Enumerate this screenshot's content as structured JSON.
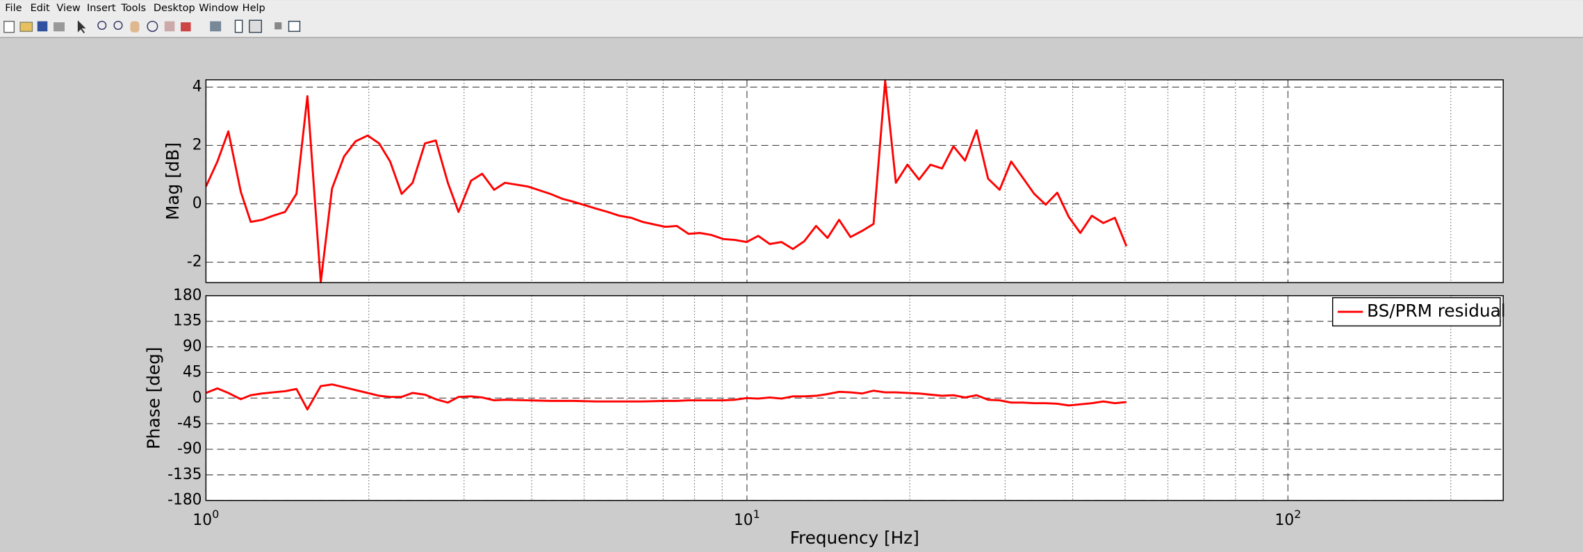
{
  "menu": [
    "File",
    "Edit",
    "View",
    "Insert",
    "Tools",
    "Desktop",
    "Window",
    "Help"
  ],
  "chart_data": [
    {
      "type": "line",
      "ylabel": "Mag [dB]",
      "log_x": true,
      "grid": true,
      "xlim": [
        1,
        250
      ],
      "xticks": [
        1,
        10,
        100
      ],
      "x_minor_ticks": [
        2,
        3,
        4,
        5,
        6,
        7,
        8,
        9,
        20,
        30,
        40,
        50,
        60,
        70,
        80,
        90,
        200
      ],
      "ylim": [
        -2.7,
        4.25
      ],
      "yticks": [
        -2,
        0,
        2,
        4
      ],
      "x": [
        1,
        1.05,
        1.1,
        1.16,
        1.21,
        1.27,
        1.33,
        1.4,
        1.47,
        1.54,
        1.63,
        1.71,
        1.8,
        1.89,
        1.99,
        2.09,
        2.19,
        2.3,
        2.41,
        2.54,
        2.66,
        2.8,
        2.93,
        3.09,
        3.24,
        3.41,
        3.57,
        3.94,
        4.33,
        4.56,
        4.78,
        5.27,
        5.53,
        5.81,
        6.11,
        6.41,
        7.06,
        7.42,
        7.8,
        8.19,
        8.6,
        9.05,
        9.5,
        9.99,
        10.49,
        11.02,
        11.58,
        12.16,
        12.77,
        13.42,
        14.09,
        14.8,
        15.54,
        16.32,
        17.14,
        18.01,
        18.85,
        19.8,
        20.8,
        21.84,
        22.94,
        24.09,
        25.3,
        26.57,
        27.91,
        29.31,
        30.79,
        32.33,
        33.96,
        35.67,
        37.46,
        39.34,
        41.32,
        43.4,
        45.58,
        47.87,
        50.28
      ],
      "series": [
        {
          "color": "#ff0000",
          "values": [
            0.59,
            1.45,
            2.48,
            0.41,
            -0.62,
            -0.55,
            -0.41,
            -0.28,
            0.34,
            3.69,
            -2.69,
            0.52,
            1.62,
            2.14,
            2.34,
            2.07,
            1.45,
            0.34,
            0.72,
            2.07,
            2.17,
            0.72,
            -0.28,
            0.79,
            1.03,
            0.48,
            0.72,
            0.59,
            0.34,
            0.17,
            0.07,
            -0.17,
            -0.28,
            -0.41,
            -0.48,
            -0.62,
            -0.79,
            -0.76,
            -1.03,
            -1.0,
            -1.07,
            -1.21,
            -1.24,
            -1.31,
            -1.1,
            -1.38,
            -1.31,
            -1.55,
            -1.28,
            -0.76,
            -1.17,
            -0.55,
            -1.14,
            -0.93,
            -0.69,
            4.21,
            0.72,
            1.34,
            0.83,
            1.34,
            1.21,
            1.97,
            1.48,
            2.52,
            0.86,
            0.48,
            1.45,
            0.9,
            0.34,
            -0.03,
            0.38,
            -0.45,
            -1.0,
            -0.41,
            -0.66,
            -0.48,
            -1.45
          ]
        }
      ]
    },
    {
      "type": "line",
      "ylabel": "Phase [deg]",
      "xlabel": "Frequency [Hz]",
      "log_x": true,
      "grid": true,
      "legend": "northeast",
      "xlim": [
        1,
        250
      ],
      "xticks": [
        {
          "value": 1,
          "label": "10",
          "exponent": "0"
        },
        {
          "value": 10,
          "label": "10",
          "exponent": "1"
        },
        {
          "value": 100,
          "label": "10",
          "exponent": "2"
        }
      ],
      "x_minor_ticks": [
        2,
        3,
        4,
        5,
        6,
        7,
        8,
        9,
        20,
        30,
        40,
        50,
        60,
        70,
        80,
        90,
        200
      ],
      "ylim": [
        -180,
        180
      ],
      "yticks": [
        -180,
        -135,
        -90,
        -45,
        0,
        45,
        90,
        135,
        180
      ],
      "x": [
        1,
        1.05,
        1.1,
        1.16,
        1.21,
        1.27,
        1.33,
        1.4,
        1.47,
        1.54,
        1.63,
        1.71,
        1.8,
        1.89,
        1.99,
        2.09,
        2.19,
        2.3,
        2.41,
        2.54,
        2.66,
        2.8,
        2.93,
        3.09,
        3.24,
        3.41,
        3.57,
        3.94,
        4.33,
        4.56,
        4.78,
        5.27,
        5.53,
        5.81,
        6.11,
        6.41,
        7.06,
        7.42,
        7.8,
        8.19,
        8.6,
        9.05,
        9.5,
        9.99,
        10.49,
        11.02,
        11.58,
        12.16,
        12.77,
        13.42,
        14.09,
        14.8,
        15.54,
        16.32,
        17.14,
        18.01,
        18.85,
        19.8,
        20.8,
        21.84,
        22.94,
        24.09,
        25.3,
        26.57,
        27.91,
        29.31,
        30.79,
        32.33,
        33.96,
        35.67,
        37.46,
        39.34,
        41.32,
        43.4,
        45.58,
        47.87,
        50.28
      ],
      "series": [
        {
          "name": "BS/PRM residual",
          "color": "#ff0000",
          "values": [
            9,
            17,
            9,
            -2,
            5,
            8,
            10,
            12,
            16,
            -20,
            21,
            24,
            19,
            14,
            9,
            4,
            2,
            2,
            9,
            6,
            -2,
            -8,
            2,
            3,
            1,
            -4,
            -3,
            -4,
            -5,
            -5,
            -5,
            -6,
            -6,
            -6,
            -6,
            -6,
            -5,
            -5,
            -4,
            -4,
            -4,
            -4,
            -3,
            0,
            -1,
            1,
            -1,
            3,
            3,
            4,
            7,
            11,
            10,
            8,
            13,
            10,
            10,
            9,
            8,
            6,
            4,
            5,
            1,
            5,
            -3,
            -4,
            -8,
            -8,
            -9,
            -9,
            -10,
            -13,
            -11,
            -9,
            -6,
            -9,
            -7
          ]
        }
      ]
    }
  ]
}
